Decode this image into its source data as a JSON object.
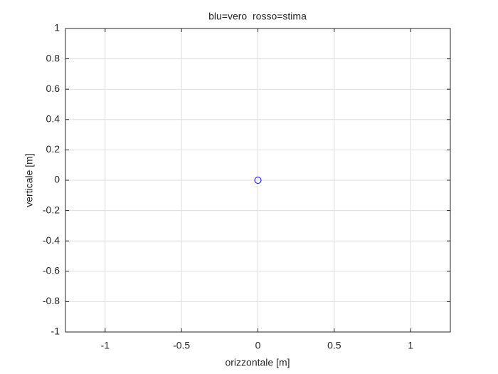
{
  "chart_data": {
    "type": "scatter",
    "title": "blu=vero  rosso=stima",
    "x_label": "orizzontale [m]",
    "y_label": "verticale [m]",
    "x": [
      0
    ],
    "values": [
      0
    ],
    "color": "#0000ff",
    "xlim": [
      -1.26,
      1.26
    ],
    "xticks": [
      -1,
      -0.5,
      0,
      0.5,
      1
    ],
    "ylim": [
      -1,
      1
    ],
    "yticks": [
      -1,
      -0.8,
      -0.6,
      -0.4,
      -0.2,
      0,
      0.2,
      0.4,
      0.6,
      0.8,
      1
    ],
    "grid": true
  }
}
